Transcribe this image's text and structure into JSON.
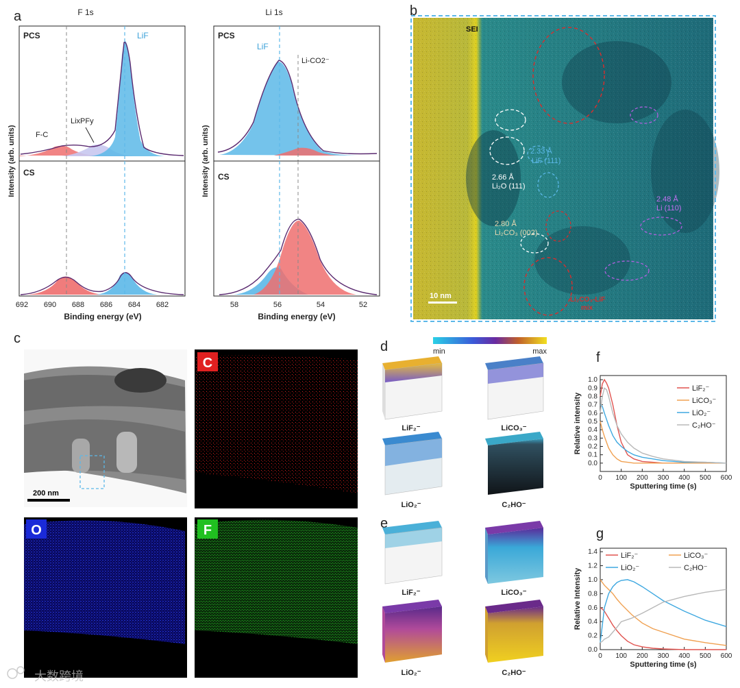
{
  "panels": {
    "a": "a",
    "b": "b",
    "c": "c",
    "d": "d",
    "e": "e",
    "f": "f",
    "g": "g"
  },
  "panel_a": {
    "f1s_title": "F 1s",
    "li1s_title": "Li 1s",
    "ylabel": "Intensity (arb. units)",
    "xlabel": "Binding energy (eV)",
    "pcs": "PCS",
    "cs": "CS",
    "lif": "LiF",
    "fc": "F-C",
    "lixpfy": "LixPFy",
    "lico2": "Li-CO2⁻",
    "f_ticks": [
      "692",
      "690",
      "688",
      "686",
      "684",
      "682"
    ],
    "li_ticks": [
      "58",
      "56",
      "54",
      "52"
    ]
  },
  "panel_b": {
    "sei": "SEI",
    "scale": "10 nm",
    "lif_d": "2.33 Å",
    "lif_plane": "LiF (111)",
    "li2o_d": "2.66 Å",
    "li2o_plane": "Li₂O (111)",
    "li2co3_d": "2.80 Å",
    "li2co3_plane": "Li₂CO₃ (002)",
    "li_d": "2.48 Å",
    "li_plane": "Li (110)",
    "mixed": "Li₂CO₃-LiF",
    "mixed2": "mix"
  },
  "panel_c": {
    "scale": "200 nm",
    "maps": [
      "C",
      "O",
      "F"
    ],
    "colors": {
      "C": "#e02020",
      "O": "#1a2ad8",
      "F": "#20c020"
    }
  },
  "panel_d": {
    "min": "min",
    "max": "max",
    "labels": [
      "LiF₂⁻",
      "LiCO₃⁻",
      "LiO₂⁻",
      "C₂HO⁻"
    ]
  },
  "panel_e": {
    "labels": [
      "LiF₂⁻",
      "LiCO₃⁻",
      "LiO₂⁻",
      "C₂HO⁻"
    ]
  },
  "chart_data": [
    {
      "panel": "f",
      "type": "line",
      "xlabel": "Sputtering time (s)",
      "ylabel": "Relative intensity",
      "xlim": [
        0,
        600
      ],
      "ylim": [
        -0.1,
        1.05
      ],
      "xticks": [
        0,
        100,
        200,
        300,
        400,
        500,
        600
      ],
      "yticks": [
        0.0,
        0.1,
        0.2,
        0.3,
        0.4,
        0.5,
        0.6,
        0.7,
        0.8,
        0.9,
        1.0
      ],
      "legend_position": "top-right",
      "series": [
        {
          "name": "LiF₂⁻",
          "color": "#e0524e",
          "x": [
            0,
            10,
            20,
            30,
            40,
            60,
            80,
            100,
            130,
            160,
            200,
            250,
            300,
            400,
            600
          ],
          "y": [
            0.8,
            0.95,
            1.0,
            0.96,
            0.9,
            0.7,
            0.45,
            0.25,
            0.1,
            0.05,
            0.02,
            0.01,
            0.0,
            0.0,
            0.0
          ]
        },
        {
          "name": "LiCO₃⁻",
          "color": "#f0a050",
          "x": [
            0,
            10,
            20,
            30,
            40,
            60,
            80,
            100,
            130,
            160,
            200,
            300,
            600
          ],
          "y": [
            0.5,
            0.4,
            0.32,
            0.25,
            0.18,
            0.1,
            0.05,
            0.02,
            0.01,
            0.0,
            0.0,
            0.0,
            0.0
          ]
        },
        {
          "name": "LiO₂⁻",
          "color": "#3ea8e0",
          "x": [
            0,
            10,
            20,
            40,
            60,
            80,
            100,
            130,
            160,
            200,
            250,
            300,
            400,
            500,
            600
          ],
          "y": [
            0.7,
            0.68,
            0.6,
            0.45,
            0.33,
            0.25,
            0.2,
            0.14,
            0.1,
            0.07,
            0.05,
            0.03,
            0.01,
            0.01,
            0.0
          ]
        },
        {
          "name": "C₂HO⁻",
          "color": "#b8b8b8",
          "x": [
            0,
            10,
            20,
            30,
            40,
            60,
            80,
            100,
            130,
            160,
            200,
            250,
            300,
            400,
            500,
            600
          ],
          "y": [
            0.6,
            0.8,
            0.9,
            0.88,
            0.8,
            0.6,
            0.45,
            0.35,
            0.25,
            0.18,
            0.12,
            0.08,
            0.05,
            0.02,
            0.01,
            0.0
          ]
        }
      ]
    },
    {
      "panel": "g",
      "type": "line",
      "xlabel": "Sputtering time (s)",
      "ylabel": "Relative Intensity",
      "xlim": [
        0,
        600
      ],
      "ylim": [
        0,
        1.45
      ],
      "xticks": [
        0,
        100,
        200,
        300,
        400,
        500,
        600
      ],
      "yticks": [
        0.0,
        0.2,
        0.4,
        0.6,
        0.8,
        1.0,
        1.2,
        1.4
      ],
      "legend_position": "top",
      "series": [
        {
          "name": "LiF₂⁻",
          "color": "#e0524e",
          "x": [
            0,
            10,
            20,
            40,
            60,
            80,
            100,
            130,
            160,
            200,
            250,
            300,
            400,
            600
          ],
          "y": [
            0.6,
            0.58,
            0.55,
            0.45,
            0.35,
            0.27,
            0.2,
            0.12,
            0.07,
            0.04,
            0.02,
            0.01,
            0.0,
            0.0
          ]
        },
        {
          "name": "LiCO₃⁻",
          "color": "#f0a050",
          "x": [
            0,
            10,
            20,
            40,
            60,
            80,
            100,
            150,
            200,
            250,
            300,
            400,
            500,
            600
          ],
          "y": [
            1.0,
            0.96,
            0.92,
            0.86,
            0.8,
            0.72,
            0.65,
            0.5,
            0.38,
            0.3,
            0.25,
            0.15,
            0.1,
            0.06
          ]
        },
        {
          "name": "LiO₂⁻",
          "color": "#3ea8e0",
          "x": [
            0,
            10,
            20,
            40,
            60,
            80,
            100,
            130,
            160,
            200,
            250,
            300,
            400,
            500,
            600
          ],
          "y": [
            0.1,
            0.35,
            0.6,
            0.8,
            0.9,
            0.96,
            0.99,
            1.0,
            0.97,
            0.9,
            0.8,
            0.7,
            0.55,
            0.42,
            0.33
          ]
        },
        {
          "name": "C₂HO⁻",
          "color": "#b8b8b8",
          "x": [
            0,
            10,
            20,
            40,
            60,
            80,
            100,
            150,
            200,
            250,
            300,
            400,
            500,
            600
          ],
          "y": [
            0.1,
            0.12,
            0.15,
            0.18,
            0.25,
            0.32,
            0.4,
            0.45,
            0.52,
            0.6,
            0.68,
            0.76,
            0.82,
            0.86
          ]
        }
      ]
    }
  ],
  "watermark": "大数跨境"
}
